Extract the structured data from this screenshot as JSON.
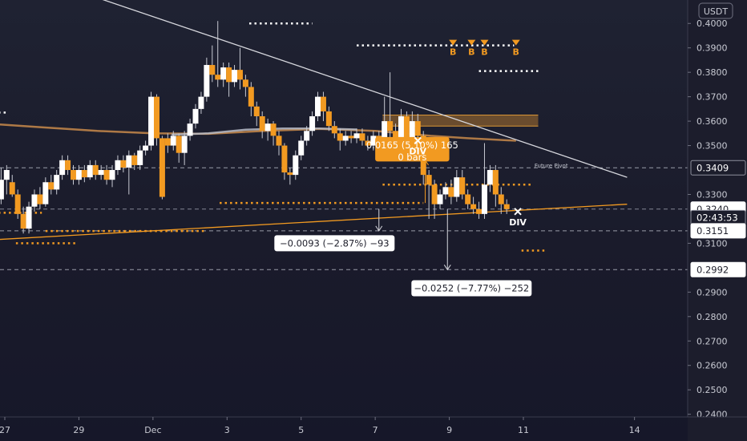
{
  "currency_badge": "USDT",
  "chart_data": {
    "type": "candlestick",
    "y_range": [
      0.2389,
      0.4096
    ],
    "y_ticks": [
      0.4,
      0.39,
      0.38,
      0.37,
      0.36,
      0.35,
      0.33,
      0.31,
      0.29,
      0.28,
      0.27,
      0.26,
      0.25,
      0.24
    ],
    "y_tick_labels": [
      "0.4000",
      "0.3900",
      "0.3800",
      "0.3700",
      "0.3600",
      "0.3500",
      "0.3300",
      "0.3100",
      "0.2900",
      "0.2800",
      "0.2700",
      "0.2600",
      "0.2500",
      "0.2400"
    ],
    "x_labels": [
      {
        "label": "27",
        "day": 27
      },
      {
        "label": "29",
        "day": 29
      },
      {
        "label": "Dec",
        "day": 31
      },
      {
        "label": "3",
        "day": 33
      },
      {
        "label": "5",
        "day": 35
      },
      {
        "label": "7",
        "day": 37
      },
      {
        "label": "9",
        "day": 39
      },
      {
        "label": "11",
        "day": 41
      },
      {
        "label": "14",
        "day": 44
      }
    ],
    "price_tags": [
      {
        "text": "0.3409",
        "value": 0.3409,
        "style": "dark"
      },
      {
        "text": "0.3240",
        "value": 0.324,
        "style": "white"
      },
      {
        "text": "02:43:53",
        "value": 0.3205,
        "style": "dark"
      },
      {
        "text": "0.3151",
        "value": 0.3151,
        "style": "white"
      },
      {
        "text": "0.2992",
        "value": 0.2992,
        "style": "white"
      }
    ],
    "candles": [
      [
        26.9,
        0.328,
        0.336,
        0.326,
        0.341
      ],
      [
        27.05,
        0.336,
        0.34,
        0.33,
        0.342
      ],
      [
        27.2,
        0.335,
        0.33,
        0.329,
        0.338
      ],
      [
        27.35,
        0.33,
        0.322,
        0.32,
        0.332
      ],
      [
        27.5,
        0.322,
        0.316,
        0.314,
        0.325
      ],
      [
        27.65,
        0.316,
        0.325,
        0.314,
        0.327
      ],
      [
        27.8,
        0.325,
        0.33,
        0.323,
        0.332
      ],
      [
        27.95,
        0.33,
        0.326,
        0.324,
        0.333
      ],
      [
        28.1,
        0.326,
        0.335,
        0.325,
        0.337
      ],
      [
        28.25,
        0.335,
        0.332,
        0.33,
        0.338
      ],
      [
        28.4,
        0.332,
        0.338,
        0.33,
        0.34
      ],
      [
        28.55,
        0.338,
        0.344,
        0.336,
        0.346
      ],
      [
        28.7,
        0.344,
        0.34,
        0.338,
        0.346
      ],
      [
        28.85,
        0.34,
        0.336,
        0.334,
        0.342
      ],
      [
        29.0,
        0.336,
        0.34,
        0.334,
        0.342
      ],
      [
        29.15,
        0.34,
        0.337,
        0.335,
        0.342
      ],
      [
        29.3,
        0.337,
        0.342,
        0.336,
        0.344
      ],
      [
        29.45,
        0.342,
        0.338,
        0.336,
        0.344
      ],
      [
        29.6,
        0.338,
        0.34,
        0.336,
        0.342
      ],
      [
        29.75,
        0.34,
        0.336,
        0.334,
        0.342
      ],
      [
        29.9,
        0.336,
        0.34,
        0.333,
        0.342
      ],
      [
        30.05,
        0.34,
        0.344,
        0.338,
        0.346
      ],
      [
        30.2,
        0.344,
        0.341,
        0.339,
        0.346
      ],
      [
        30.35,
        0.341,
        0.346,
        0.33,
        0.348
      ],
      [
        30.5,
        0.346,
        0.342,
        0.34,
        0.347
      ],
      [
        30.65,
        0.342,
        0.348,
        0.34,
        0.35
      ],
      [
        30.8,
        0.348,
        0.35,
        0.346,
        0.352
      ],
      [
        30.95,
        0.35,
        0.37,
        0.348,
        0.372
      ],
      [
        31.1,
        0.37,
        0.353,
        0.35,
        0.371
      ],
      [
        31.25,
        0.353,
        0.329,
        0.328,
        0.354
      ],
      [
        31.4,
        0.353,
        0.35,
        0.347,
        0.355
      ],
      [
        31.55,
        0.35,
        0.354,
        0.348,
        0.356
      ],
      [
        31.7,
        0.354,
        0.347,
        0.343,
        0.355
      ],
      [
        31.85,
        0.347,
        0.354,
        0.342,
        0.356
      ],
      [
        32.0,
        0.354,
        0.359,
        0.352,
        0.361
      ],
      [
        32.15,
        0.359,
        0.365,
        0.357,
        0.367
      ],
      [
        32.3,
        0.365,
        0.37,
        0.363,
        0.372
      ],
      [
        32.45,
        0.37,
        0.383,
        0.368,
        0.386
      ],
      [
        32.6,
        0.383,
        0.379,
        0.376,
        0.391
      ],
      [
        32.75,
        0.379,
        0.377,
        0.374,
        0.401
      ],
      [
        32.9,
        0.377,
        0.382,
        0.374,
        0.384
      ],
      [
        33.05,
        0.382,
        0.376,
        0.37,
        0.384
      ],
      [
        33.2,
        0.376,
        0.381,
        0.374,
        0.383
      ],
      [
        33.35,
        0.381,
        0.377,
        0.373,
        0.39
      ],
      [
        33.5,
        0.377,
        0.374,
        0.37,
        0.379
      ],
      [
        33.65,
        0.374,
        0.366,
        0.362,
        0.376
      ],
      [
        33.8,
        0.366,
        0.362,
        0.358,
        0.368
      ],
      [
        33.95,
        0.362,
        0.356,
        0.353,
        0.364
      ],
      [
        34.1,
        0.356,
        0.359,
        0.352,
        0.361
      ],
      [
        34.25,
        0.359,
        0.354,
        0.35,
        0.36
      ],
      [
        34.4,
        0.354,
        0.35,
        0.346,
        0.356
      ],
      [
        34.55,
        0.35,
        0.339,
        0.336,
        0.351
      ],
      [
        34.7,
        0.339,
        0.338,
        0.334,
        0.341
      ],
      [
        34.85,
        0.338,
        0.346,
        0.336,
        0.348
      ],
      [
        35.0,
        0.346,
        0.352,
        0.344,
        0.354
      ],
      [
        35.15,
        0.352,
        0.356,
        0.35,
        0.358
      ],
      [
        35.3,
        0.356,
        0.362,
        0.354,
        0.364
      ],
      [
        35.45,
        0.362,
        0.37,
        0.36,
        0.372
      ],
      [
        35.6,
        0.37,
        0.364,
        0.36,
        0.372
      ],
      [
        35.75,
        0.364,
        0.358,
        0.356,
        0.366
      ],
      [
        35.9,
        0.358,
        0.355,
        0.353,
        0.36
      ],
      [
        36.05,
        0.355,
        0.352,
        0.348,
        0.357
      ],
      [
        36.2,
        0.352,
        0.354,
        0.35,
        0.356
      ],
      [
        36.35,
        0.354,
        0.353,
        0.351,
        0.356
      ],
      [
        36.5,
        0.353,
        0.355,
        0.351,
        0.357
      ],
      [
        36.65,
        0.355,
        0.352,
        0.35,
        0.357
      ],
      [
        36.8,
        0.352,
        0.35,
        0.348,
        0.354
      ],
      [
        36.95,
        0.35,
        0.354,
        0.348,
        0.356
      ],
      [
        37.1,
        0.354,
        0.35,
        0.347,
        0.356
      ],
      [
        37.25,
        0.35,
        0.36,
        0.349,
        0.37
      ],
      [
        37.4,
        0.36,
        0.356,
        0.351,
        0.38
      ],
      [
        37.55,
        0.356,
        0.352,
        0.349,
        0.359
      ],
      [
        37.7,
        0.352,
        0.362,
        0.348,
        0.365
      ],
      [
        37.85,
        0.362,
        0.352,
        0.346,
        0.364
      ],
      [
        38.0,
        0.352,
        0.36,
        0.35,
        0.364
      ],
      [
        38.15,
        0.36,
        0.354,
        0.348,
        0.363
      ],
      [
        38.3,
        0.354,
        0.338,
        0.334,
        0.356
      ],
      [
        38.45,
        0.338,
        0.334,
        0.32,
        0.34
      ],
      [
        38.6,
        0.334,
        0.326,
        0.32,
        0.336
      ],
      [
        38.75,
        0.326,
        0.33,
        0.324,
        0.332
      ],
      [
        38.9,
        0.33,
        0.333,
        0.328,
        0.335
      ],
      [
        39.05,
        0.333,
        0.329,
        0.326,
        0.336
      ],
      [
        39.2,
        0.329,
        0.337,
        0.327,
        0.34
      ],
      [
        39.35,
        0.337,
        0.33,
        0.328,
        0.34
      ],
      [
        39.5,
        0.33,
        0.326,
        0.324,
        0.332
      ],
      [
        39.65,
        0.326,
        0.324,
        0.322,
        0.329
      ],
      [
        39.8,
        0.324,
        0.322,
        0.32,
        0.327
      ],
      [
        39.95,
        0.322,
        0.334,
        0.32,
        0.351
      ],
      [
        40.1,
        0.334,
        0.34,
        0.331,
        0.342
      ],
      [
        40.25,
        0.34,
        0.33,
        0.325,
        0.342
      ],
      [
        40.4,
        0.33,
        0.326,
        0.322,
        0.333
      ],
      [
        40.55,
        0.326,
        0.324,
        0.322,
        0.328
      ]
    ],
    "moving_averages": [
      {
        "color": "#c8894a",
        "points": [
          [
            25.0,
            0.36
          ],
          [
            26.5,
            0.359
          ],
          [
            28.0,
            0.3575
          ],
          [
            29.5,
            0.356
          ],
          [
            31.0,
            0.355
          ],
          [
            32.5,
            0.3548
          ],
          [
            34.0,
            0.356
          ],
          [
            35.5,
            0.3568
          ],
          [
            37.0,
            0.356
          ],
          [
            38.5,
            0.354
          ],
          [
            39.5,
            0.353
          ],
          [
            40.8,
            0.352
          ]
        ]
      },
      {
        "color": "#b9bcc7",
        "points": [
          [
            31.5,
            0.3545
          ],
          [
            32.5,
            0.355
          ],
          [
            33.5,
            0.3565
          ],
          [
            34.5,
            0.357
          ],
          [
            35.5,
            0.357
          ],
          [
            36.5,
            0.3566
          ]
        ]
      }
    ],
    "trendlines": [
      {
        "name": "downtrend",
        "color": "#d6d7dd",
        "points": [
          [
            29.6,
            0.41
          ],
          [
            43.8,
            0.337
          ]
        ]
      },
      {
        "name": "uptrend",
        "color": "#f29a21",
        "points": [
          [
            25.0,
            0.31
          ],
          [
            43.8,
            0.326
          ]
        ]
      }
    ],
    "horizontal_levels": [
      {
        "value": 0.3409,
        "dash": "dashed",
        "color": "#b9bcc7"
      },
      {
        "value": 0.324,
        "dash": "dashed",
        "color": "#9ea1ad"
      },
      {
        "value": 0.3151,
        "dash": "dashed",
        "color": "#b9bcc7"
      },
      {
        "value": 0.2992,
        "dash": "dashed",
        "color": "#b9bcc7"
      }
    ],
    "dotted_segments": [
      {
        "x1": 33.6,
        "x2": 35.3,
        "value": 0.4,
        "color": "#ffffff"
      },
      {
        "x1": 36.5,
        "x2": 40.75,
        "value": 0.391,
        "color": "#ffffff"
      },
      {
        "x1": 39.8,
        "x2": 41.4,
        "value": 0.3805,
        "color": "#ffffff"
      },
      {
        "x1": 25.0,
        "x2": 27.1,
        "value": 0.3635,
        "color": "#ffffff"
      },
      {
        "x1": 37.2,
        "x2": 41.2,
        "value": 0.334,
        "color": "#f29a21"
      },
      {
        "x1": 32.8,
        "x2": 38.3,
        "value": 0.3265,
        "color": "#f29a21"
      },
      {
        "x1": 25.0,
        "x2": 28.0,
        "value": 0.3225,
        "color": "#f29a21"
      },
      {
        "x1": 28.1,
        "x2": 32.4,
        "value": 0.315,
        "color": "#f29a21"
      },
      {
        "x1": 27.3,
        "x2": 28.9,
        "value": 0.31,
        "color": "#f29a21"
      },
      {
        "x1": 40.95,
        "x2": 41.65,
        "value": 0.307,
        "color": "#f29a21"
      }
    ],
    "buy_signals": [
      {
        "x": 39.1,
        "value": 0.391,
        "label": "B"
      },
      {
        "x": 39.6,
        "value": 0.391,
        "label": "B"
      },
      {
        "x": 39.95,
        "value": 0.391,
        "label": "B"
      },
      {
        "x": 40.8,
        "value": 0.391,
        "label": "B"
      }
    ],
    "div_signals": [
      {
        "x": 38.15,
        "value": 0.352,
        "label": "DIV"
      },
      {
        "x": 40.85,
        "value": 0.323,
        "label": "DIV"
      }
    ],
    "annotations": [
      {
        "text": "Future Pivot",
        "x": 41.3,
        "value": 0.342
      }
    ],
    "measure_boxes": [
      {
        "text": "−0.0093 (−2.87%) −93",
        "x1": 36.85,
        "x2": 37.35,
        "y1": 0.324,
        "y2": 0.3151,
        "label_x": 35.9,
        "label_value": 0.31
      },
      {
        "text": "−0.0252 (−7.77%) −252",
        "x1": 38.6,
        "x2": 39.3,
        "y1": 0.324,
        "y2": 0.2992,
        "label_x": 39.6,
        "label_value": 0.2916
      }
    ],
    "profit_label": {
      "line1": "0.0165 (5.10%) 165",
      "line2": "0 bars",
      "x1": 37.0,
      "x2": 39.0,
      "y1": 0.3535,
      "y2": 0.3435
    },
    "orange_zone": {
      "x1": 37.2,
      "x2": 41.4,
      "y1": 0.3625,
      "y2": 0.358
    }
  }
}
